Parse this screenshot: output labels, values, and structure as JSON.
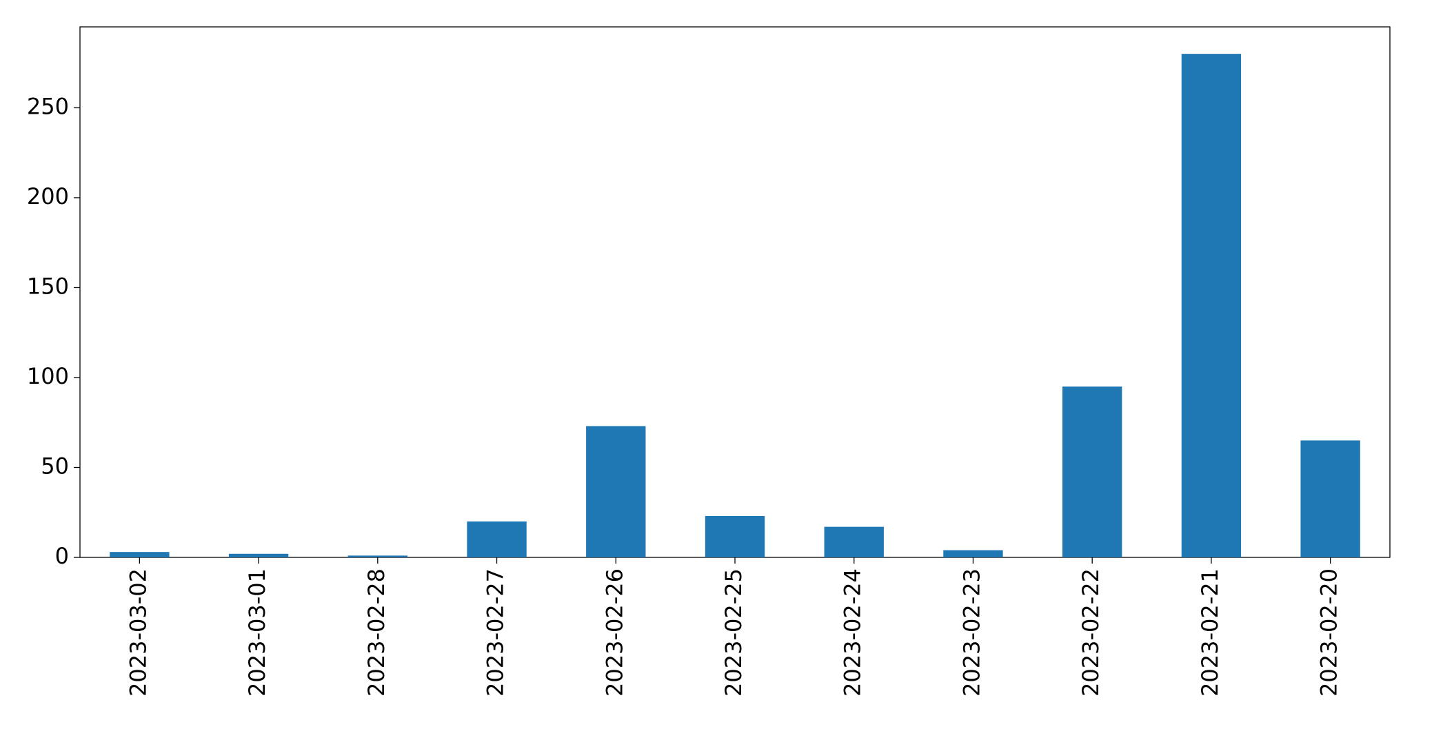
{
  "chart_data": {
    "type": "bar",
    "categories": [
      "2023-03-02",
      "2023-03-01",
      "2023-02-28",
      "2023-02-27",
      "2023-02-26",
      "2023-02-25",
      "2023-02-24",
      "2023-02-23",
      "2023-02-22",
      "2023-02-21",
      "2023-02-20"
    ],
    "values": [
      3,
      2,
      1,
      20,
      73,
      23,
      17,
      4,
      95,
      280,
      65
    ],
    "color": "#1f77b4",
    "ylim": [
      0,
      295
    ],
    "yticks": [
      0,
      50,
      100,
      150,
      200,
      250
    ],
    "grid": false
  }
}
